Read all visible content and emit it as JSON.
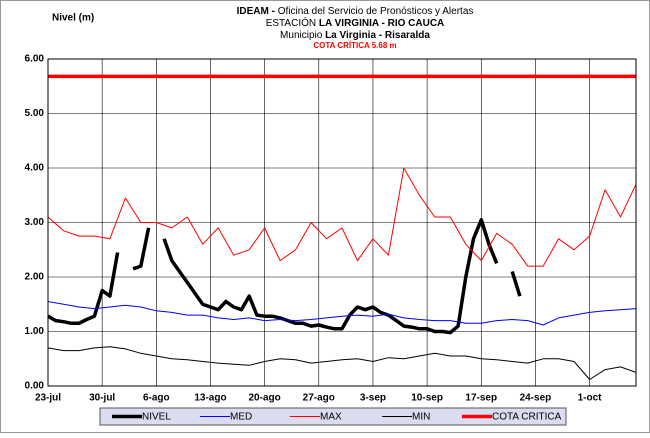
{
  "chart_data": {
    "type": "line",
    "title": {
      "line1_bold": "IDEAM -",
      "line1": "Oficina del Servicio de Pronósticos y Alertas",
      "line2": "ESTACIÓN",
      "line2_bold": "LA VIRGINIA - RIO CAUCA",
      "line3": "Municipio",
      "line3_bold": "La Virginia - Risaralda"
    },
    "annotation": "COTA CRÍTICA 5.68 m",
    "y_label": "Nivel (m)",
    "xlim": [
      0,
      76
    ],
    "xticks": [
      {
        "value": 0,
        "label": "23-jul"
      },
      {
        "value": 7,
        "label": "30-jul"
      },
      {
        "value": 14,
        "label": "6-ago"
      },
      {
        "value": 21,
        "label": "13-ago"
      },
      {
        "value": 28,
        "label": "20-ago"
      },
      {
        "value": 35,
        "label": "27-ago"
      },
      {
        "value": 42,
        "label": "3-sep"
      },
      {
        "value": 49,
        "label": "10-sep"
      },
      {
        "value": 56,
        "label": "17-sep"
      },
      {
        "value": 63,
        "label": "24-sep"
      },
      {
        "value": 70,
        "label": "1-oct"
      }
    ],
    "ylim": [
      0,
      6
    ],
    "yticks": [
      {
        "value": 0,
        "label": "0.00"
      },
      {
        "value": 1,
        "label": "1.00"
      },
      {
        "value": 2,
        "label": "2.00"
      },
      {
        "value": 3,
        "label": "3.00"
      },
      {
        "value": 4,
        "label": "4.00"
      },
      {
        "value": 5,
        "label": "5.00"
      },
      {
        "value": 6,
        "label": "6.00"
      }
    ],
    "grid": true,
    "legend": "bottom",
    "series": [
      {
        "name": "NIVEL",
        "color": "#000000",
        "width": 3.5,
        "x": [
          0,
          1,
          2,
          3,
          4,
          5,
          6,
          7,
          8,
          9,
          10,
          11,
          12,
          13,
          14,
          15,
          16,
          17,
          18,
          19,
          20,
          21,
          22,
          23,
          24,
          25,
          26,
          27,
          28,
          29,
          30,
          31,
          32,
          33,
          34,
          35,
          36,
          37,
          38,
          39,
          40,
          41,
          42,
          43,
          44,
          45,
          46,
          47,
          48,
          49,
          50,
          51,
          52,
          53,
          54,
          55,
          56,
          57,
          58,
          59,
          60,
          61
        ],
        "values": [
          1.28,
          1.2,
          1.18,
          1.15,
          1.15,
          1.22,
          1.28,
          1.75,
          1.65,
          2.45,
          null,
          2.15,
          2.2,
          2.9,
          null,
          2.7,
          2.3,
          2.1,
          1.9,
          1.7,
          1.5,
          1.45,
          1.4,
          1.55,
          1.45,
          1.4,
          1.65,
          1.3,
          1.28,
          1.28,
          1.25,
          1.2,
          1.15,
          1.15,
          1.1,
          1.12,
          1.08,
          1.05,
          1.05,
          1.3,
          1.45,
          1.4,
          1.45,
          1.35,
          1.3,
          1.2,
          1.1,
          1.08,
          1.05,
          1.05,
          1.0,
          1.0,
          0.98,
          1.1,
          2.0,
          2.7,
          3.05,
          2.6,
          2.25,
          null,
          2.1,
          1.65
        ]
      },
      {
        "name": "MED",
        "color": "#0000ff",
        "width": 1,
        "x": [
          0,
          2,
          4,
          6,
          8,
          10,
          12,
          14,
          16,
          18,
          20,
          22,
          24,
          26,
          28,
          30,
          32,
          34,
          36,
          38,
          40,
          42,
          44,
          46,
          48,
          50,
          52,
          54,
          56,
          58,
          60,
          62,
          64,
          66,
          68,
          70,
          72,
          74,
          76
        ],
        "values": [
          1.55,
          1.5,
          1.45,
          1.42,
          1.45,
          1.48,
          1.45,
          1.38,
          1.35,
          1.3,
          1.3,
          1.25,
          1.22,
          1.25,
          1.2,
          1.22,
          1.2,
          1.22,
          1.25,
          1.28,
          1.3,
          1.28,
          1.32,
          1.25,
          1.22,
          1.2,
          1.2,
          1.15,
          1.15,
          1.2,
          1.22,
          1.2,
          1.12,
          1.25,
          1.3,
          1.35,
          1.38,
          1.4,
          1.42
        ]
      },
      {
        "name": "MAX",
        "color": "#ff0000",
        "width": 1,
        "x": [
          0,
          2,
          4,
          6,
          8,
          10,
          12,
          14,
          16,
          18,
          20,
          22,
          24,
          26,
          28,
          30,
          32,
          34,
          36,
          38,
          40,
          42,
          44,
          46,
          48,
          50,
          52,
          54,
          56,
          58,
          60,
          62,
          64,
          66,
          68,
          70,
          72,
          74,
          76
        ],
        "values": [
          3.1,
          2.85,
          2.75,
          2.75,
          2.7,
          3.45,
          3.0,
          3.0,
          2.9,
          3.1,
          2.6,
          2.9,
          2.4,
          2.5,
          2.9,
          2.3,
          2.5,
          3.0,
          2.7,
          2.9,
          2.3,
          2.7,
          2.4,
          4.0,
          3.5,
          3.1,
          3.1,
          2.6,
          2.3,
          2.8,
          2.6,
          2.2,
          2.2,
          2.7,
          2.5,
          2.75,
          3.6,
          3.1,
          3.7
        ]
      },
      {
        "name": "MIN",
        "color": "#000000",
        "width": 1,
        "x": [
          0,
          2,
          4,
          6,
          8,
          10,
          12,
          14,
          16,
          18,
          20,
          22,
          24,
          26,
          28,
          30,
          32,
          34,
          36,
          38,
          40,
          42,
          44,
          46,
          48,
          50,
          52,
          54,
          56,
          58,
          60,
          62,
          64,
          66,
          68,
          70,
          72,
          74,
          76
        ],
        "values": [
          0.7,
          0.65,
          0.65,
          0.7,
          0.72,
          0.68,
          0.6,
          0.55,
          0.5,
          0.48,
          0.45,
          0.42,
          0.4,
          0.38,
          0.45,
          0.5,
          0.48,
          0.42,
          0.45,
          0.48,
          0.5,
          0.45,
          0.52,
          0.5,
          0.55,
          0.6,
          0.55,
          0.55,
          0.5,
          0.48,
          0.45,
          0.42,
          0.5,
          0.5,
          0.45,
          0.12,
          0.3,
          0.35,
          0.25
        ]
      },
      {
        "name": "COTA CRITICA",
        "color": "#ff0000",
        "width": 3.5,
        "x": [
          0,
          76
        ],
        "values": [
          5.68,
          5.68
        ]
      }
    ]
  }
}
